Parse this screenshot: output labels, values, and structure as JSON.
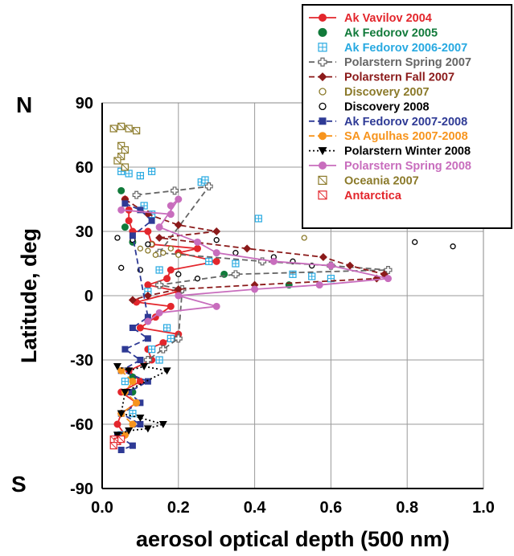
{
  "chart_data": {
    "type": "scatter",
    "title": "",
    "xlabel": "aerosol optical depth (500 nm)",
    "ylabel": "Latitude, deg",
    "xlim": [
      0,
      1.0
    ],
    "ylim": [
      -90,
      90
    ],
    "x_ticks": [
      "0.0",
      "0.2",
      "0.4",
      "0.6",
      "0.8",
      "1.0"
    ],
    "y_ticks": [
      "90",
      "60",
      "30",
      "0",
      "-30",
      "-60",
      "-90"
    ],
    "hemisphere_labels": {
      "north": "N",
      "south": "S"
    },
    "grid": true,
    "legend_position": "top-right",
    "series": [
      {
        "name": "Ak Vavilov 2004",
        "color": "#e3262c",
        "marker": "circle",
        "line": "solid",
        "points": [
          [
            0.06,
            45
          ],
          [
            0.07,
            40
          ],
          [
            0.07,
            35
          ],
          [
            0.08,
            30
          ],
          [
            0.12,
            30
          ],
          [
            0.13,
            24
          ],
          [
            0.25,
            22
          ],
          [
            0.2,
            20
          ],
          [
            0.3,
            16
          ],
          [
            0.18,
            12
          ],
          [
            0.17,
            8
          ],
          [
            0.12,
            5
          ],
          [
            0.2,
            2
          ],
          [
            0.09,
            -3
          ],
          [
            0.18,
            -5
          ],
          [
            0.14,
            -10
          ],
          [
            0.1,
            -15
          ],
          [
            0.2,
            -18
          ],
          [
            0.16,
            -22
          ],
          [
            0.12,
            -25
          ],
          [
            0.13,
            -30
          ],
          [
            0.07,
            -35
          ],
          [
            0.1,
            -40
          ],
          [
            0.05,
            -45
          ],
          [
            0.09,
            -50
          ],
          [
            0.05,
            -55
          ],
          [
            0.04,
            -60
          ],
          [
            0.06,
            -65
          ]
        ]
      },
      {
        "name": "Ak Fedorov 2005",
        "color": "#117a3a",
        "marker": "circle",
        "line": "none",
        "points": [
          [
            0.05,
            49
          ],
          [
            0.06,
            32
          ],
          [
            0.08,
            25
          ],
          [
            0.32,
            10
          ],
          [
            0.49,
            5
          ],
          [
            0.08,
            -38
          ],
          [
            0.08,
            -45
          ]
        ]
      },
      {
        "name": "Ak Fedorov 2006-2007",
        "color": "#27a9e1",
        "marker": "square-hatched",
        "line": "none",
        "points": [
          [
            0.05,
            58
          ],
          [
            0.07,
            57
          ],
          [
            0.1,
            56
          ],
          [
            0.13,
            58
          ],
          [
            0.26,
            53
          ],
          [
            0.27,
            54
          ],
          [
            0.11,
            42
          ],
          [
            0.13,
            38
          ],
          [
            0.41,
            36
          ],
          [
            0.28,
            16
          ],
          [
            0.35,
            15
          ],
          [
            0.5,
            10
          ],
          [
            0.55,
            9
          ],
          [
            0.6,
            8
          ],
          [
            0.15,
            12
          ],
          [
            0.12,
            2
          ],
          [
            0.17,
            -15
          ],
          [
            0.18,
            -20
          ],
          [
            0.13,
            -25
          ],
          [
            0.15,
            -30
          ],
          [
            0.06,
            -40
          ],
          [
            0.08,
            -55
          ],
          [
            0.05,
            -65
          ]
        ]
      },
      {
        "name": "Polarstern Spring 2007",
        "color": "#666666",
        "marker": "plus-open",
        "line": "dashed",
        "points": [
          [
            0.09,
            47
          ],
          [
            0.19,
            49
          ],
          [
            0.28,
            51
          ],
          [
            0.15,
            20
          ],
          [
            0.42,
            16
          ],
          [
            0.6,
            14
          ],
          [
            0.75,
            12
          ],
          [
            0.35,
            10
          ],
          [
            0.15,
            5
          ],
          [
            0.21,
            3
          ],
          [
            0.2,
            -20
          ],
          [
            0.16,
            -25
          ],
          [
            0.12,
            -30
          ]
        ]
      },
      {
        "name": "Polarstern Fall 2007",
        "color": "#8b1a1a",
        "marker": "diamond",
        "line": "dashed",
        "points": [
          [
            0.06,
            45
          ],
          [
            0.12,
            38
          ],
          [
            0.2,
            33
          ],
          [
            0.3,
            30
          ],
          [
            0.15,
            27
          ],
          [
            0.38,
            22
          ],
          [
            0.58,
            18
          ],
          [
            0.65,
            14
          ],
          [
            0.74,
            10
          ],
          [
            0.72,
            8
          ],
          [
            0.4,
            5
          ],
          [
            0.2,
            3
          ],
          [
            0.12,
            0
          ],
          [
            0.08,
            -2
          ]
        ]
      },
      {
        "name": "Discovery 2007",
        "color": "#8b7a2a",
        "marker": "circle-open",
        "line": "none",
        "points": [
          [
            0.1,
            22
          ],
          [
            0.12,
            21
          ],
          [
            0.14,
            19
          ],
          [
            0.16,
            20
          ],
          [
            0.18,
            22
          ],
          [
            0.2,
            19
          ],
          [
            0.13,
            24
          ],
          [
            0.53,
            27
          ]
        ]
      },
      {
        "name": "Discovery 2008",
        "color": "#000000",
        "marker": "circle-open",
        "line": "none",
        "points": [
          [
            0.04,
            27
          ],
          [
            0.08,
            26
          ],
          [
            0.12,
            24
          ],
          [
            0.3,
            26
          ],
          [
            0.35,
            20
          ],
          [
            0.45,
            18
          ],
          [
            0.5,
            16
          ],
          [
            0.55,
            14
          ],
          [
            0.82,
            25
          ],
          [
            0.92,
            23
          ],
          [
            0.05,
            13
          ],
          [
            0.1,
            12
          ],
          [
            0.2,
            10
          ],
          [
            0.25,
            8
          ]
        ]
      },
      {
        "name": "Ak Fedorov 2007-2008",
        "color": "#2e3a95",
        "marker": "square",
        "line": "dashed",
        "points": [
          [
            0.06,
            43
          ],
          [
            0.1,
            40
          ],
          [
            0.13,
            35
          ],
          [
            0.08,
            28
          ],
          [
            0.12,
            -10
          ],
          [
            0.08,
            -15
          ],
          [
            0.12,
            -20
          ],
          [
            0.06,
            -25
          ],
          [
            0.1,
            -30
          ],
          [
            0.05,
            -35
          ],
          [
            0.12,
            -40
          ],
          [
            0.07,
            -45
          ],
          [
            0.1,
            -50
          ],
          [
            0.05,
            -55
          ],
          [
            0.1,
            -60
          ],
          [
            0.04,
            -65
          ],
          [
            0.08,
            -70
          ],
          [
            0.05,
            -72
          ]
        ]
      },
      {
        "name": "SA Agulhas 2007-2008",
        "color": "#f7941d",
        "marker": "circle",
        "line": "dashed",
        "points": [
          [
            0.05,
            -35
          ],
          [
            0.08,
            -40
          ],
          [
            0.06,
            -45
          ],
          [
            0.09,
            -50
          ],
          [
            0.05,
            -55
          ],
          [
            0.08,
            -60
          ],
          [
            0.06,
            -65
          ]
        ]
      },
      {
        "name": "Polarstern Winter 2008",
        "color": "#000000",
        "marker": "triangle-down",
        "line": "dotted",
        "points": [
          [
            0.04,
            -33
          ],
          [
            0.07,
            -35
          ],
          [
            0.11,
            -33
          ],
          [
            0.17,
            -35
          ],
          [
            0.06,
            -45
          ],
          [
            0.05,
            -55
          ],
          [
            0.1,
            -57
          ],
          [
            0.16,
            -60
          ],
          [
            0.12,
            -62
          ],
          [
            0.07,
            -63
          ],
          [
            0.04,
            -65
          ]
        ]
      },
      {
        "name": "Polarstern Spring 2008",
        "color": "#c86dbd",
        "marker": "circle",
        "line": "solid",
        "points": [
          [
            0.05,
            40
          ],
          [
            0.18,
            38
          ],
          [
            0.18,
            42
          ],
          [
            0.2,
            45
          ],
          [
            0.15,
            32
          ],
          [
            0.25,
            25
          ],
          [
            0.3,
            20
          ],
          [
            0.45,
            16
          ],
          [
            0.6,
            14
          ],
          [
            0.75,
            8
          ],
          [
            0.57,
            5
          ],
          [
            0.4,
            3
          ],
          [
            0.2,
            0
          ],
          [
            0.3,
            -5
          ],
          [
            0.15,
            -8
          ],
          [
            0.12,
            -12
          ]
        ]
      },
      {
        "name": "Oceania 2007",
        "color": "#8b7a2a",
        "marker": "square-crossed",
        "line": "none",
        "points": [
          [
            0.03,
            78
          ],
          [
            0.05,
            79
          ],
          [
            0.07,
            78
          ],
          [
            0.09,
            77
          ],
          [
            0.05,
            70
          ],
          [
            0.06,
            68
          ],
          [
            0.05,
            65
          ],
          [
            0.04,
            63
          ],
          [
            0.06,
            60
          ]
        ]
      },
      {
        "name": "Antarctica",
        "color": "#e3262c",
        "marker": "square-crossed",
        "line": "none",
        "points": [
          [
            0.03,
            -67
          ],
          [
            0.04,
            -68
          ],
          [
            0.05,
            -67
          ],
          [
            0.03,
            -70
          ]
        ]
      }
    ]
  }
}
